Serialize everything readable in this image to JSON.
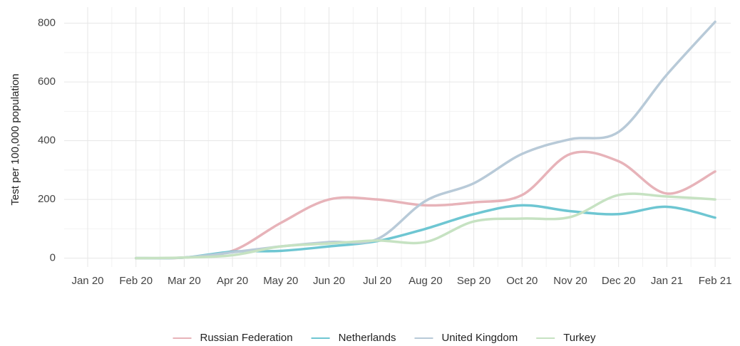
{
  "chart_data": {
    "type": "line",
    "y_label": "Test per 100,000 population",
    "x": [
      "Jan 20",
      "Feb 20",
      "Mar 20",
      "Apr 20",
      "May 20",
      "Jun 20",
      "Jul 20",
      "Aug 20",
      "Sep 20",
      "Oct 20",
      "Nov 20",
      "Dec 20",
      "Jan 21",
      "Feb 21"
    ],
    "series": [
      {
        "name": "Russian Federation",
        "color": "#e7b3b9",
        "values": [
          null,
          0,
          2,
          25,
          120,
          200,
          200,
          180,
          190,
          215,
          355,
          330,
          220,
          295
        ]
      },
      {
        "name": "Netherlands",
        "color": "#6ec6d2",
        "values": [
          null,
          0,
          2,
          22,
          25,
          40,
          58,
          100,
          150,
          180,
          160,
          150,
          175,
          138
        ]
      },
      {
        "name": "United Kingdom",
        "color": "#b8cad8",
        "values": [
          null,
          0,
          2,
          20,
          40,
          55,
          65,
          195,
          255,
          355,
          405,
          430,
          625,
          805
        ]
      },
      {
        "name": "Turkey",
        "color": "#c6e2c2",
        "values": [
          null,
          0,
          2,
          10,
          40,
          50,
          60,
          55,
          125,
          135,
          140,
          215,
          210,
          200
        ]
      }
    ],
    "ylim": [
      -30,
      855
    ],
    "yticks": [
      0,
      200,
      400,
      600,
      800
    ],
    "grid": true,
    "legend": "bottom"
  }
}
